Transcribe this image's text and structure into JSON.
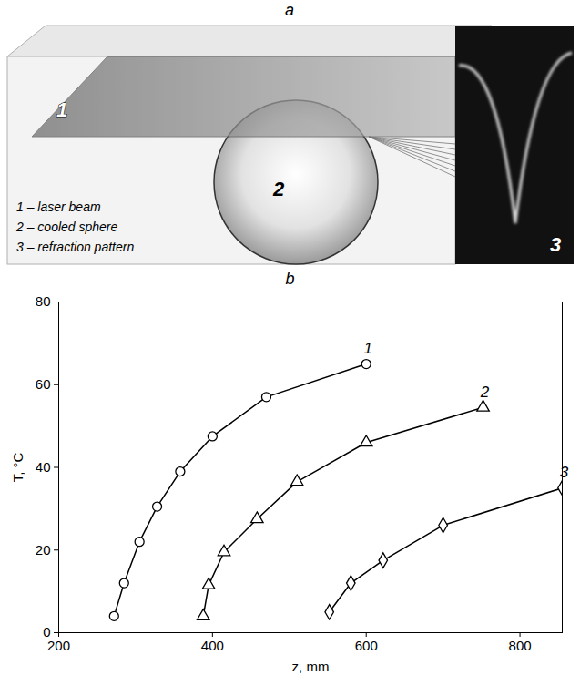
{
  "diagram": {
    "title": "a",
    "markers": [
      "1",
      "2",
      "3"
    ],
    "key_lines": [
      "1 – laser beam",
      "2 – cooled sphere",
      "3 – refraction pattern"
    ]
  },
  "chart_data": {
    "type": "line",
    "title": "b",
    "x_label": "z, mm",
    "y_label": "T, °C",
    "xlim": [
      200,
      855
    ],
    "xticks": [
      200,
      400,
      600,
      800
    ],
    "ylim": [
      0,
      80
    ],
    "yticks": [
      0,
      20,
      40,
      60,
      80
    ],
    "grid": false,
    "series": [
      {
        "name": "1",
        "color": "#000000",
        "marker": "circle",
        "line_style": "solid",
        "x": [
          272,
          285,
          305,
          328,
          358,
          400,
          470,
          600
        ],
        "values": [
          4,
          12,
          22,
          30.5,
          39,
          47.5,
          57,
          65
        ]
      },
      {
        "name": "2",
        "color": "#000000",
        "marker": "triangle",
        "line_style": "solid",
        "x": [
          388,
          395,
          415,
          458,
          510,
          600,
          752
        ],
        "values": [
          4,
          11.5,
          19.5,
          27.5,
          36.5,
          46,
          54.5
        ]
      },
      {
        "name": "3",
        "color": "#000000",
        "marker": "diamond",
        "line_style": "solid",
        "x": [
          552,
          580,
          622,
          700,
          855
        ],
        "values": [
          5,
          12,
          17.5,
          26,
          35
        ]
      }
    ]
  }
}
